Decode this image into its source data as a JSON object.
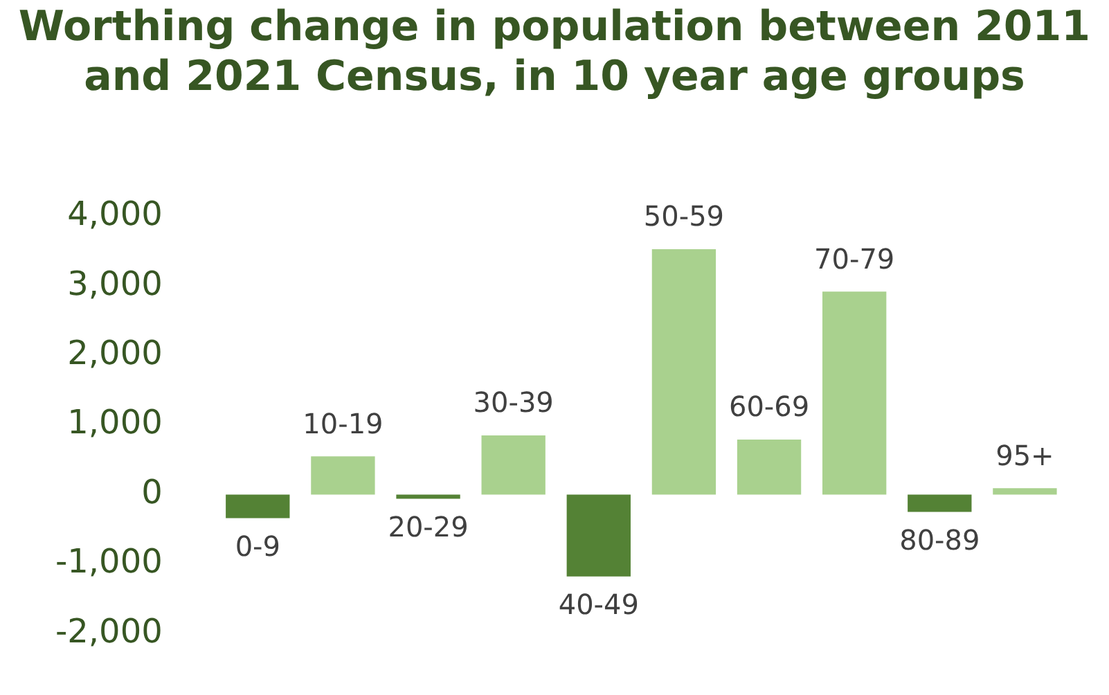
{
  "chart_data": {
    "type": "bar",
    "title": "Worthing change in population between 2011 and 2021 Census, in 10 year age groups",
    "categories": [
      "0-9",
      "10-19",
      "20-29",
      "30-39",
      "40-49",
      "50-59",
      "60-69",
      "70-79",
      "80-89",
      "95+"
    ],
    "values": [
      -340,
      550,
      -60,
      850,
      -1180,
      3530,
      790,
      2920,
      -250,
      90
    ],
    "colors": [
      "#548235",
      "#a9d18e",
      "#548235",
      "#a9d18e",
      "#548235",
      "#a9d18e",
      "#a9d18e",
      "#a9d18e",
      "#548235",
      "#a9d18e"
    ],
    "ylim": [
      -2000,
      4000
    ],
    "yticks": [
      {
        "value": -2000,
        "label": "-2,000"
      },
      {
        "value": -1000,
        "label": "-1,000"
      },
      0,
      {
        "value": 1000,
        "label": "1,000"
      },
      {
        "value": 2000,
        "label": "2,000"
      },
      {
        "value": 3000,
        "label": "3,000"
      },
      {
        "value": 4000,
        "label": "4,000"
      }
    ],
    "tick_labels": "y"
  }
}
